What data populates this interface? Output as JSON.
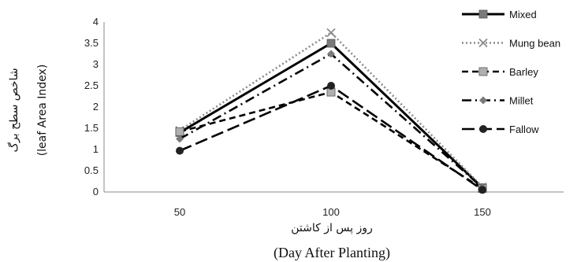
{
  "chart_data": {
    "type": "line",
    "title": "",
    "x": [
      "50",
      "100",
      "150"
    ],
    "ylim": [
      0,
      4
    ],
    "yticks": [
      "0",
      "0.5",
      "1",
      "1.5",
      "2",
      "2.5",
      "3",
      "3.5",
      "4"
    ],
    "ylabel_fa": "شاخص سطح برگ",
    "ylabel_en": "(leaf Area Index)",
    "xlabel_fa": "روز پس از کاشتن",
    "xlabel_en": "(Day After Planting)",
    "legend_position": "right",
    "grid": false,
    "series": [
      {
        "name": "Mixed",
        "values": [
          1.4,
          3.5,
          0.1
        ],
        "color": "#000000",
        "marker": "square",
        "line": "solid"
      },
      {
        "name": "Mung bean",
        "values": [
          1.45,
          3.75,
          0.12
        ],
        "color": "#8c8c8c",
        "marker": "x",
        "line": "dotted"
      },
      {
        "name": "Barley",
        "values": [
          1.42,
          2.35,
          0.08
        ],
        "color": "#000000",
        "marker": "square",
        "line": "dashed"
      },
      {
        "name": "Millet",
        "values": [
          1.25,
          3.25,
          0.1
        ],
        "color": "#000000",
        "marker": "diamond",
        "line": "dashdot"
      },
      {
        "name": "Fallow",
        "values": [
          0.97,
          2.5,
          0.05
        ],
        "color": "#000000",
        "marker": "circle",
        "line": "longdash"
      }
    ]
  }
}
